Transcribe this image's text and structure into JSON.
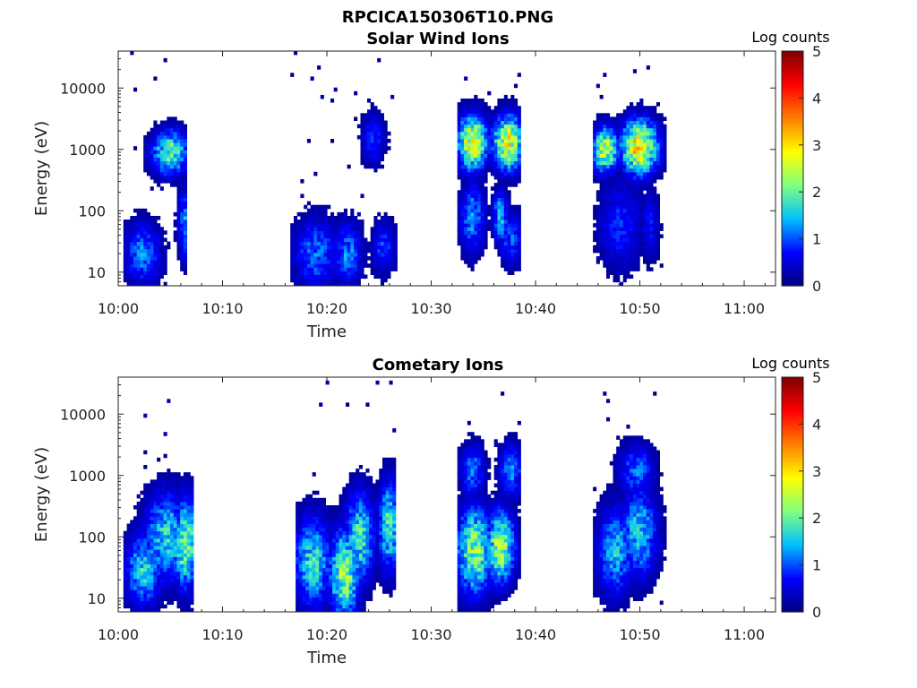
{
  "figure_title": "RPCICA150306T10.PNG",
  "colors": {
    "colormap": [
      "#00007f",
      "#0000ff",
      "#00bfff",
      "#7fff7f",
      "#ffff00",
      "#ff7f00",
      "#ff0000",
      "#7f0000"
    ]
  },
  "chart_data": [
    {
      "type": "heatmap",
      "title": "Solar Wind Ions",
      "xlabel": "Time",
      "ylabel": "Energy (eV)",
      "x_ticklabels": [
        "10:00",
        "10:10",
        "10:20",
        "10:30",
        "10:40",
        "10:50",
        "11:00"
      ],
      "xlim_minutes": [
        0,
        63
      ],
      "y_scale": "log",
      "ylim": [
        6,
        40000
      ],
      "y_ticks": [
        10,
        100,
        1000,
        10000
      ],
      "y_ticklabels": [
        "10",
        "100",
        "1000",
        "10000"
      ],
      "colorbar_label": "Log counts",
      "colorbar_ticklabels": [
        "0",
        "1",
        "2",
        "3",
        "4",
        "5"
      ],
      "clim": [
        0,
        5
      ],
      "grid": false,
      "bursts": [
        {
          "t_start": 0.5,
          "t_end": 6.5,
          "regions": [
            {
              "t": 2.2,
              "e": 20,
              "dt": 1.2,
              "de": 0.35,
              "peak": 1.3
            },
            {
              "t": 4.8,
              "e": 900,
              "dt": 1.2,
              "de": 0.25,
              "peak": 2.2
            },
            {
              "t": 6.3,
              "e": 60,
              "dt": 0.5,
              "de": 0.4,
              "peak": 1.4
            }
          ]
        },
        {
          "t_start": 16.5,
          "t_end": 26.5,
          "regions": [
            {
              "t": 18.8,
              "e": 20,
              "dt": 1.5,
              "de": 0.4,
              "peak": 1.2
            },
            {
              "t": 21.8,
              "e": 20,
              "dt": 1.0,
              "de": 0.35,
              "peak": 1.3
            },
            {
              "t": 25.3,
              "e": 25,
              "dt": 0.8,
              "de": 0.3,
              "peak": 1.0
            },
            {
              "t": 24.3,
              "e": 1500,
              "dt": 0.8,
              "de": 0.3,
              "peak": 0.9
            }
          ]
        },
        {
          "t_start": 32.5,
          "t_end": 38.5,
          "regions": [
            {
              "t": 33.8,
              "e": 1300,
              "dt": 1.0,
              "de": 0.3,
              "peak": 3.1
            },
            {
              "t": 37.2,
              "e": 1300,
              "dt": 1.0,
              "de": 0.3,
              "peak": 3.1
            },
            {
              "t": 33.8,
              "e": 80,
              "dt": 0.8,
              "de": 0.4,
              "peak": 1.4
            },
            {
              "t": 36.5,
              "e": 80,
              "dt": 0.5,
              "de": 0.3,
              "peak": 1.7
            },
            {
              "t": 37.5,
              "e": 35,
              "dt": 0.8,
              "de": 0.3,
              "peak": 1.1
            }
          ]
        },
        {
          "t_start": 45.5,
          "t_end": 52.5,
          "regions": [
            {
              "t": 46.5,
              "e": 1000,
              "dt": 0.9,
              "de": 0.25,
              "peak": 2.7
            },
            {
              "t": 49.8,
              "e": 1100,
              "dt": 1.2,
              "de": 0.3,
              "peak": 3.3
            },
            {
              "t": 48.0,
              "e": 60,
              "dt": 1.5,
              "de": 0.5,
              "peak": 0.9
            },
            {
              "t": 50.8,
              "e": 60,
              "dt": 0.6,
              "de": 0.4,
              "peak": 0.8
            }
          ]
        }
      ]
    },
    {
      "type": "heatmap",
      "title": "Cometary Ions",
      "xlabel": "Time",
      "ylabel": "Energy (eV)",
      "x_ticklabels": [
        "10:00",
        "10:10",
        "10:20",
        "10:30",
        "10:40",
        "10:50",
        "11:00"
      ],
      "xlim_minutes": [
        0,
        63
      ],
      "y_scale": "log",
      "ylim": [
        6,
        40000
      ],
      "y_ticks": [
        10,
        100,
        1000,
        10000
      ],
      "y_ticklabels": [
        "10",
        "100",
        "1000",
        "10000"
      ],
      "colorbar_label": "Log counts",
      "colorbar_ticklabels": [
        "0",
        "1",
        "2",
        "3",
        "4",
        "5"
      ],
      "clim": [
        0,
        5
      ],
      "grid": false,
      "bursts": [
        {
          "t_start": 0.5,
          "t_end": 7.0,
          "regions": [
            {
              "t": 2.3,
              "e": 30,
              "dt": 1.2,
              "de": 0.4,
              "peak": 1.8
            },
            {
              "t": 4.5,
              "e": 100,
              "dt": 1.5,
              "de": 0.5,
              "peak": 1.8
            },
            {
              "t": 6.3,
              "e": 80,
              "dt": 0.8,
              "de": 0.5,
              "peak": 2.4
            }
          ]
        },
        {
          "t_start": 17.0,
          "t_end": 26.5,
          "regions": [
            {
              "t": 18.5,
              "e": 40,
              "dt": 1.2,
              "de": 0.5,
              "peak": 1.9
            },
            {
              "t": 21.5,
              "e": 25,
              "dt": 1.0,
              "de": 0.5,
              "peak": 2.5
            },
            {
              "t": 23.0,
              "e": 100,
              "dt": 1.0,
              "de": 0.5,
              "peak": 2.0
            },
            {
              "t": 25.8,
              "e": 150,
              "dt": 0.7,
              "de": 0.5,
              "peak": 2.0
            }
          ]
        },
        {
          "t_start": 32.5,
          "t_end": 38.5,
          "regions": [
            {
              "t": 34.0,
              "e": 60,
              "dt": 1.2,
              "de": 0.5,
              "peak": 2.4
            },
            {
              "t": 36.5,
              "e": 70,
              "dt": 0.9,
              "de": 0.4,
              "peak": 2.7
            },
            {
              "t": 33.8,
              "e": 1200,
              "dt": 0.8,
              "de": 0.3,
              "peak": 1.3
            },
            {
              "t": 37.5,
              "e": 1200,
              "dt": 0.8,
              "de": 0.3,
              "peak": 1.3
            }
          ]
        },
        {
          "t_start": 45.5,
          "t_end": 52.5,
          "regions": [
            {
              "t": 47.5,
              "e": 60,
              "dt": 1.2,
              "de": 0.5,
              "peak": 1.6
            },
            {
              "t": 49.8,
              "e": 120,
              "dt": 1.2,
              "de": 0.5,
              "peak": 1.7
            },
            {
              "t": 49.5,
              "e": 1200,
              "dt": 1.2,
              "de": 0.3,
              "peak": 1.2
            }
          ]
        }
      ]
    }
  ]
}
